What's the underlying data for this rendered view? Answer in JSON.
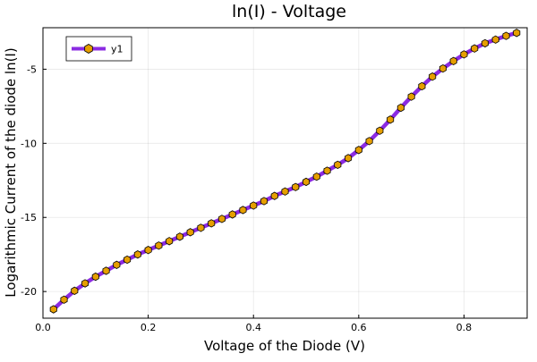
{
  "chart_data": {
    "type": "line",
    "title": "ln(I) - Voltage",
    "xlabel": "Voltage of the Diode (V)",
    "ylabel": "Logarithmic Current of the diode ln(I)",
    "xlim": [
      0.0,
      0.92
    ],
    "ylim": [
      -21.8,
      -2.2
    ],
    "xticks": [
      0.0,
      0.2,
      0.4,
      0.6,
      0.8
    ],
    "xtick_labels": [
      "0.0",
      "0.2",
      "0.4",
      "0.6",
      "0.8"
    ],
    "yticks": [
      -20,
      -15,
      -10,
      -5
    ],
    "ytick_labels": [
      "-20",
      "-15",
      "-10",
      "-5"
    ],
    "grid": true,
    "legend": {
      "position": "top-left"
    },
    "series": [
      {
        "name": "y1",
        "line_color": "#8b2be2",
        "marker_color": "#e69f00",
        "marker": "hexagon",
        "x": [
          0.02,
          0.04,
          0.06,
          0.08,
          0.1,
          0.12,
          0.14,
          0.16,
          0.18,
          0.2,
          0.22,
          0.24,
          0.26,
          0.28,
          0.3,
          0.32,
          0.34,
          0.36,
          0.38,
          0.4,
          0.42,
          0.44,
          0.46,
          0.48,
          0.5,
          0.52,
          0.54,
          0.56,
          0.58,
          0.6,
          0.62,
          0.64,
          0.66,
          0.68,
          0.7,
          0.72,
          0.74,
          0.76,
          0.78,
          0.8,
          0.82,
          0.84,
          0.86,
          0.88,
          0.9
        ],
        "y": [
          -21.2,
          -20.55,
          -19.95,
          -19.45,
          -19.0,
          -18.6,
          -18.2,
          -17.85,
          -17.5,
          -17.2,
          -16.9,
          -16.6,
          -16.3,
          -16.0,
          -15.7,
          -15.4,
          -15.1,
          -14.8,
          -14.5,
          -14.2,
          -13.9,
          -13.55,
          -13.25,
          -12.95,
          -12.6,
          -12.25,
          -11.85,
          -11.45,
          -11.0,
          -10.45,
          -9.85,
          -9.15,
          -8.4,
          -7.6,
          -6.85,
          -6.15,
          -5.5,
          -4.95,
          -4.45,
          -4.0,
          -3.6,
          -3.25,
          -3.0,
          -2.75,
          -2.55
        ]
      }
    ]
  }
}
